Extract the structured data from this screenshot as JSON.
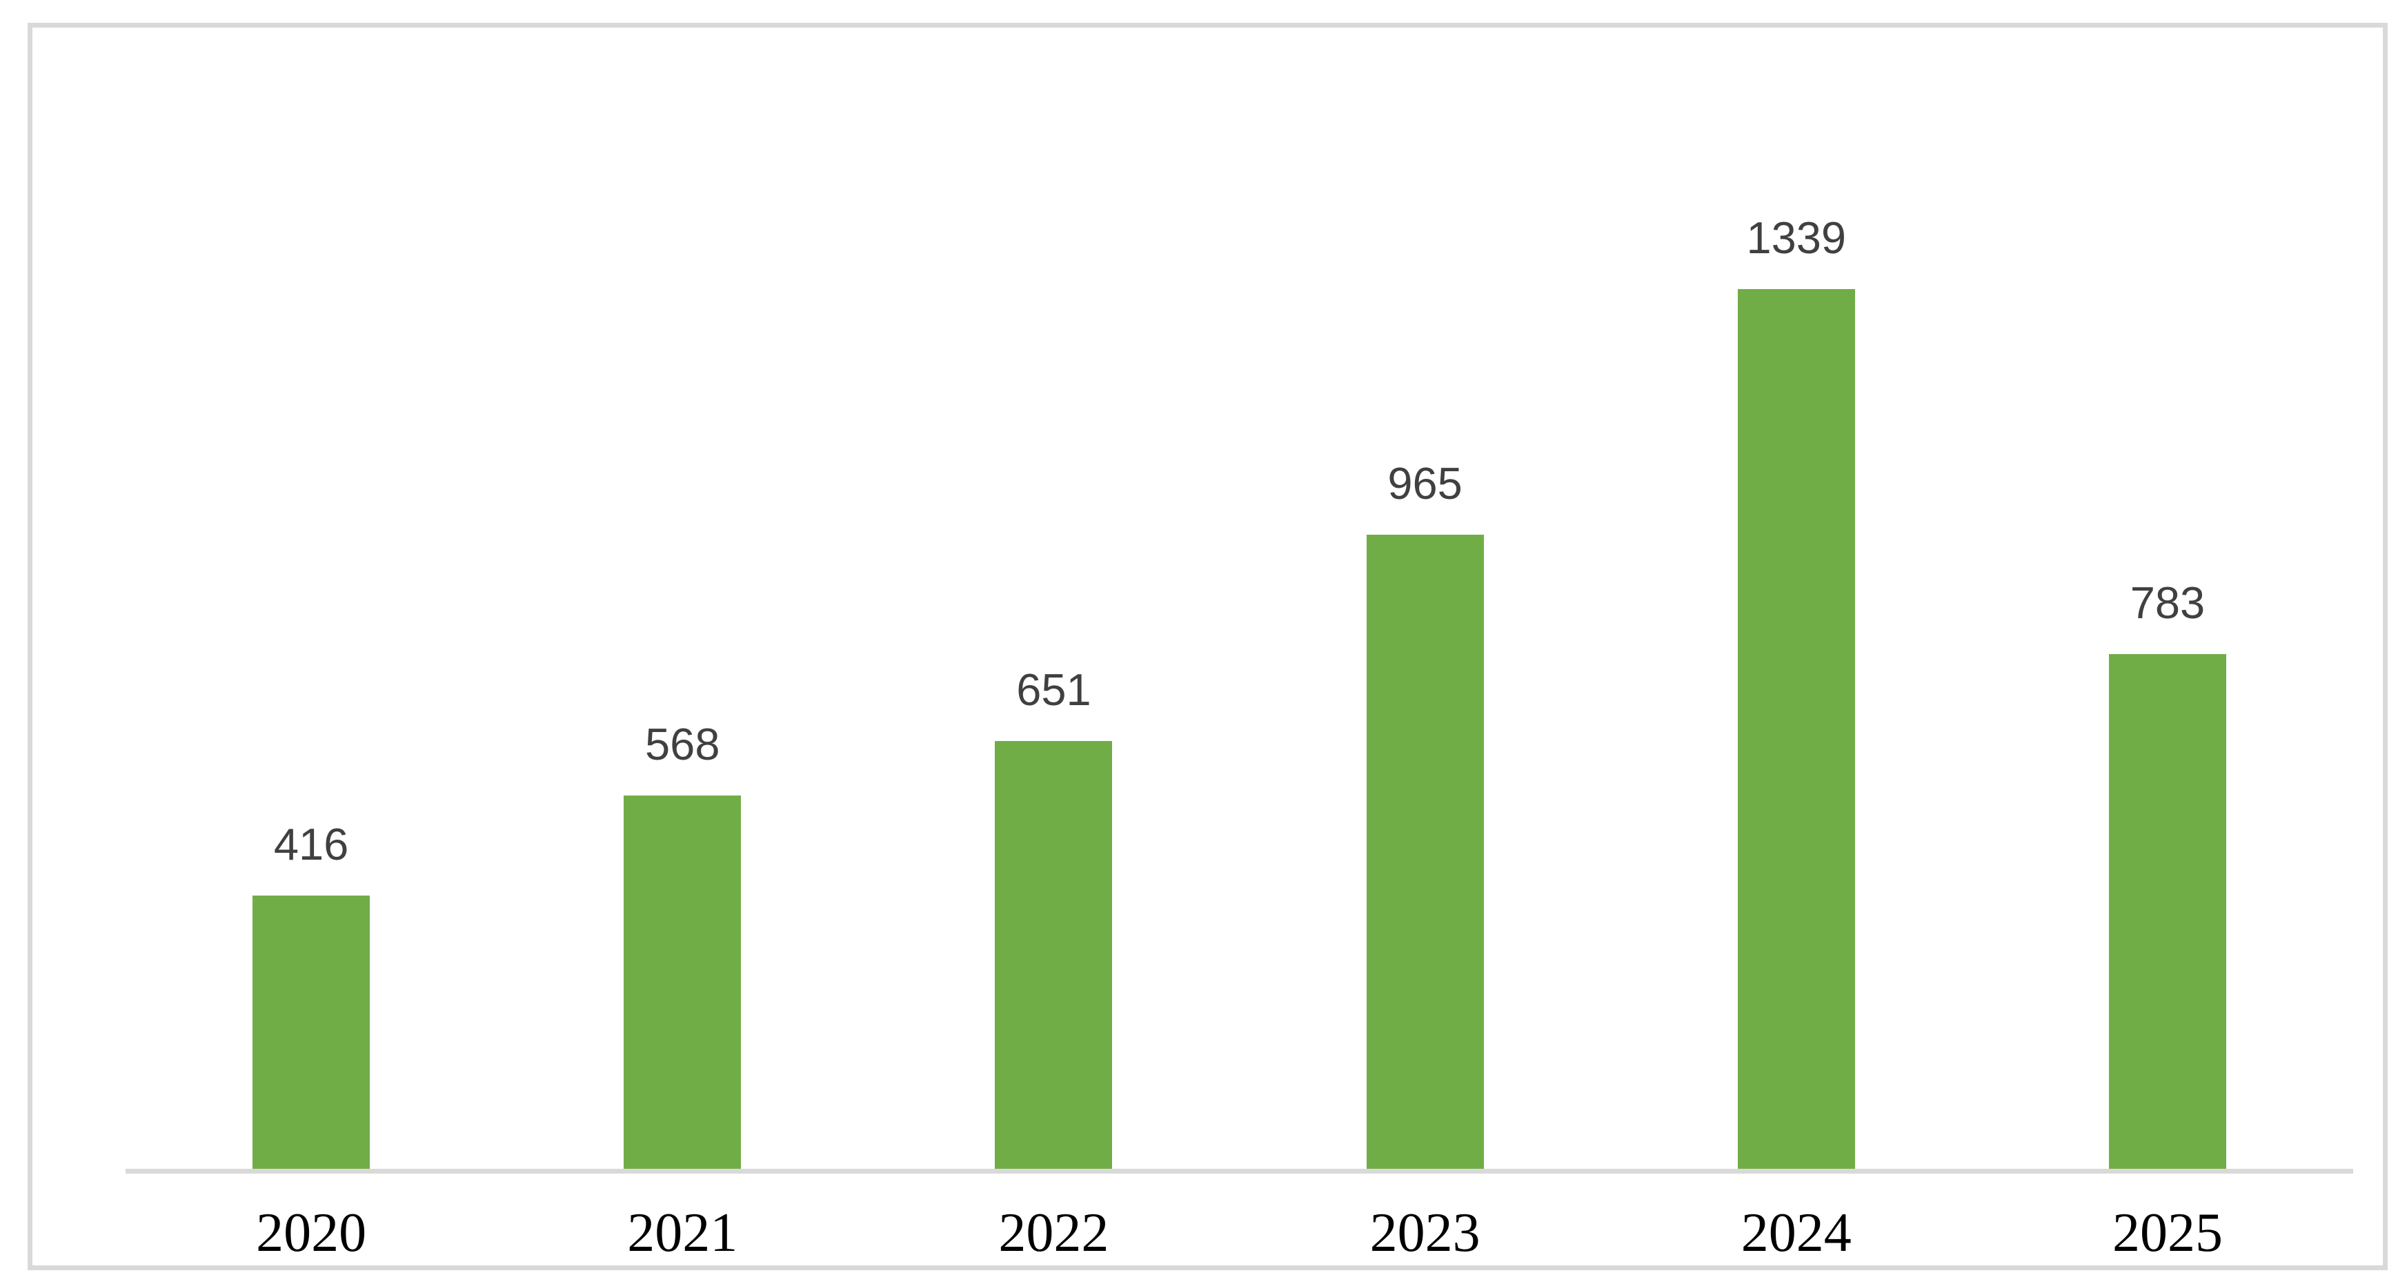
{
  "chart_data": {
    "type": "bar",
    "categories": [
      "2020",
      "2021",
      "2022",
      "2023",
      "2024",
      "2025"
    ],
    "values": [
      416,
      568,
      651,
      965,
      1339,
      783
    ],
    "title": "",
    "xlabel": "",
    "ylabel": "",
    "ylim": [
      0,
      1680
    ],
    "grid": false,
    "legend": false,
    "data_labels_shown": true,
    "colors": {
      "bar_fill": "#70AD47",
      "value_label": "#404040",
      "category_label": "#000000",
      "axis_line": "#D9D9D9",
      "chart_border": "#D9D9D9",
      "background": "#FFFFFF"
    }
  }
}
